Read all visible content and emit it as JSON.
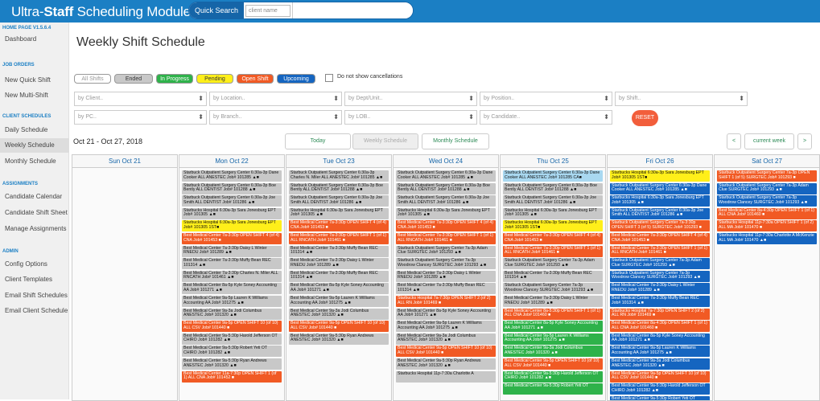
{
  "header": {
    "title_prefix": "Ultra-",
    "title_bold": "Staff",
    "title_suffix": " Scheduling Module",
    "quick_search_label": "Quick Search",
    "quick_search_select": "client name"
  },
  "sidebar": {
    "version": "HOME PAGE  V1.5.6.4",
    "sections": [
      {
        "heading": "",
        "items": [
          "Dashboard"
        ]
      },
      {
        "heading": "JOB ORDERS",
        "items": [
          "New Quick Shift",
          "New Multi-Shift"
        ]
      },
      {
        "heading": "CLIENT SCHEDULES",
        "items": [
          "Daily Schedule",
          "Weekly Schedule",
          "Monthly Schedule"
        ]
      },
      {
        "heading": "ASSIGNMENTS",
        "items": [
          "Candidate Calendar",
          "Candidate Shift Sheet",
          "Manage Assignments"
        ]
      },
      {
        "heading": "ADMIN",
        "items": [
          "Config Options",
          "Client Templates",
          "Email Shift Schedules",
          "Email Client Schedule"
        ]
      }
    ],
    "active": "Weekly Schedule"
  },
  "main": {
    "page_title": "Weekly Shift Schedule",
    "status_buttons": [
      {
        "label": "All Shifts",
        "color": "#ffffff"
      },
      {
        "label": "Ended",
        "color": "#c8c8c8"
      },
      {
        "label": "In Progress",
        "color": "#2eb24a"
      },
      {
        "label": "Pending",
        "color": "#ffef1a"
      },
      {
        "label": "Open Shift",
        "color": "#f15a24"
      },
      {
        "label": "Upcoming",
        "color": "#1565c0"
      }
    ],
    "cancel_label": "Do not show cancellations",
    "filters": [
      "by Client..",
      "by Location..",
      "by Dept/Unit..",
      "by Position..",
      "by Shift..",
      "by PC..",
      "by Branch..",
      "by LOB..",
      "by Candidate.."
    ],
    "reset_label": "RESET",
    "date_range": "Oct 21 - Oct 27, 2018",
    "views": [
      "Today",
      "Weekly Schedule",
      "Monthly Schedule"
    ],
    "nav": {
      "prev": "<",
      "current": "current week",
      "next": ">"
    },
    "days": [
      {
        "name": "Sun Oct 21",
        "events": []
      },
      {
        "name": "Mon Oct 22",
        "events": [
          {
            "c": "gray",
            "t": "Starbuck Outpatient Surgery Center 6:30a-3p Dane Cooker ALL ANESTEC Job# 101285 ▲■"
          },
          {
            "c": "gray",
            "t": "Starbuck Outpatient Surgery Center 6:30a-3p Boe Bently ALL DENTIST Job# 101288 ▲■"
          },
          {
            "c": "gray",
            "t": "Starbuck Outpatient Surgery Center 6:30a-3p Joe Smith ALL DENTIST Job# 101286 ▲■"
          },
          {
            "c": "gray",
            "t": "Starbucks Hospital 6:30a-3p Sara Jonesburg EPT Job# 101305 ▲■"
          },
          {
            "c": "yellow",
            "t": "Starbucks Hospital 6:30a-3p Sara Jonesburg EPT Job# 101305 1ST■"
          },
          {
            "c": "orange",
            "t": "Best Medical Center 7a-3:30p OPEN SHIFT 4 (of 4) CNA Job# 101453 ■"
          },
          {
            "c": "gray",
            "t": "Best Medical Center 7a-3:30p Daisy L Winter RNEDU Job# 101289 ▲■"
          },
          {
            "c": "gray",
            "t": "Best Medical Center 7a-3:30p Muffy Bean REC 101314 ▲■"
          },
          {
            "c": "gray",
            "t": "Best Medical Center 7a-3:30p Charles N. Miler ALL RNCATH Job# 101461 ▲■"
          },
          {
            "c": "gray",
            "t": "Best Medical Center 8a-5p Kyle Soney Accounting AA Job# 101271 ▲■"
          },
          {
            "c": "gray",
            "t": "Best Medical Center 9a-5p Lauren K Williams Accounting AA Job# 101275 ▲■"
          },
          {
            "c": "gray",
            "t": "Best Medical Center 9a-3a Jodi Columbus ANESTEC Job# 101320 ▲■"
          },
          {
            "c": "orange",
            "t": "Best Medical Center 9a-5p OPEN SHIFT 10 (of 10) ALL CSV Job# 101440 ■"
          },
          {
            "c": "gray",
            "t": "Best Medical Center 9a-5:30p Harold Jefferson OT CHIRO Job# 101282 ▲■"
          },
          {
            "c": "gray",
            "t": "Best Medical Center 9a-5:30p Robert Yeti OT CHIRO Job# 101282 ▲■"
          },
          {
            "c": "gray",
            "t": "Best Medical Center 9a-5:30p Ryan Andrews ANESTEC Job# 101320 ▲■"
          },
          {
            "c": "orange",
            "t": "Best Medical Center 11a-7:30p OPEN SHIFT 1 (of 1) ALL CNA Job# 101452 ■"
          }
        ]
      },
      {
        "name": "Tue Oct 23",
        "events": [
          {
            "c": "gray",
            "t": "Starbuck Outpatient Surgery Center 6:30a-3p Charles N. Miler ALL ANESTEC Job# 101285 ▲■"
          },
          {
            "c": "gray",
            "t": "Starbuck Outpatient Surgery Center 6:30a-3p Boe Bently ALL DENTIST Job# 101288 ▲■"
          },
          {
            "c": "gray",
            "t": "Starbuck Outpatient Surgery Center 6:30a-3p Joe Smith ALL DENTIST Job# 101286 ▲■"
          },
          {
            "c": "gray",
            "t": "Starbucks Hospital 6:30a-3p Sara Jonesburg EPT Job# 101305 ▲■"
          },
          {
            "c": "orange",
            "t": "Best Medical Center 7a-3:30p OPEN SHIFT 4 (of 4) CNA Job# 101453 ■"
          },
          {
            "c": "orange",
            "t": "Best Medical Center 7a-3:30p OPEN SHIFT 1 (of 1) ALL RNCATH Job# 101461 ■"
          },
          {
            "c": "gray",
            "t": "Best Medical Center 7a-3:30p Muffy Bean REC 101314 ▲■"
          },
          {
            "c": "gray",
            "t": "Best Medical Center 7a-3:30p Daisy L Winter RNEDU Job# 101289 ▲■"
          },
          {
            "c": "gray",
            "t": "Best Medical Center 7a-3:30p Muffy Bean REC 101314 ▲■"
          },
          {
            "c": "gray",
            "t": "Best Medical Center 8a-5p Kyle Soney Accounting AA Job# 101271 ▲■"
          },
          {
            "c": "gray",
            "t": "Best Medical Center 9a-5p Lauren K Williams Accounting AA Job# 101275 ▲■"
          },
          {
            "c": "gray",
            "t": "Best Medical Center 9a-3a Jodi Columbus ANESTEC Job# 101320 ▲■"
          },
          {
            "c": "orange",
            "t": "Best Medical Center 9a-5p OPEN SHIFT 10 (of 10) ALL CSV Job# 101440 ■"
          },
          {
            "c": "gray",
            "t": "Best Medical Center 9a-5:30p Ryan Andrews ANESTEC Job# 101320 ▲■"
          }
        ]
      },
      {
        "name": "Wed Oct 24",
        "events": [
          {
            "c": "gray",
            "t": "Starbuck Outpatient Surgery Center 6:30a-3p Dane Cooker ALL ANESTEC Job# 101285 ▲■"
          },
          {
            "c": "gray",
            "t": "Starbuck Outpatient Surgery Center 6:30a-3p Boe Bently ALL DENTIST Job# 101288 ▲■"
          },
          {
            "c": "gray",
            "t": "Starbuck Outpatient Surgery Center 6:30a-3p Joe Smith ALL DENTIST Job# 101286 ▲■"
          },
          {
            "c": "gray",
            "t": "Starbucks Hospital 6:30a-3p Sara Jonesburg EPT Job# 101305 ▲■"
          },
          {
            "c": "orange",
            "t": "Best Medical Center 7a-3:30p OPEN SHIFT 4 (of 4) CNA Job# 101453 ■"
          },
          {
            "c": "orange",
            "t": "Best Medical Center 7a-3:30p OPEN SHIFT 1 (of 1) ALL RNCATH Job# 101461 ■"
          },
          {
            "c": "gray",
            "t": "Starbuck Outpatient Surgery Center 7a-3p Adam Clue SURGTEC Job# 101293 ▲■"
          },
          {
            "c": "gray",
            "t": "Starbuck Outpatient Surgery Center 7a-3p Woodrow Clancey SURGTEC Job# 101293 ▲■"
          },
          {
            "c": "gray",
            "t": "Best Medical Center 7a-3:30p Daisy L Winter RNEDU Job# 101289 ▲■"
          },
          {
            "c": "gray",
            "t": "Best Medical Center 7a-3:30p Muffy Bean REC 101314 ▲■"
          },
          {
            "c": "orange",
            "t": "Starbucks Hospital 7a-7:30p OPEN SHIFT 2 (of 2) ALL RN Job# 101469 ■"
          },
          {
            "c": "gray",
            "t": "Best Medical Center 8a-5p Kyle Soney Accounting AA Job# 101271 ▲■"
          },
          {
            "c": "gray",
            "t": "Best Medical Center 9a-5p Lauren K Williams Accounting AA Job# 101275 ▲■"
          },
          {
            "c": "gray",
            "t": "Best Medical Center 9a-3a Jodi Columbus ANESTEC Job# 101320 ▲■"
          },
          {
            "c": "orange",
            "t": "Best Medical Center 9a-5p OPEN SHIFT 10 (of 10) ALL CSV Job# 101440 ■"
          },
          {
            "c": "gray",
            "t": "Best Medical Center 9a-5:30p Ryan Andrews ANESTEC Job# 101320 ▲■"
          },
          {
            "c": "gray",
            "t": "Starbucks Hospital 11p-7:30a Charlotte A"
          }
        ]
      },
      {
        "name": "Thu Oct 25",
        "events": [
          {
            "c": "lblue",
            "t": "Starbuck Outpatient Surgery Center 6:30a-3p Dane Cooker ALL ANESTEC Job# 101285 CA■"
          },
          {
            "c": "gray",
            "t": "Starbuck Outpatient Surgery Center 6:30a-3p Boe Bently ALL DENTIST Job# 101288 ▲■"
          },
          {
            "c": "gray",
            "t": "Starbuck Outpatient Surgery Center 6:30a-3p Joe Smith ALL DENTIST Job# 101286 ▲■"
          },
          {
            "c": "gray",
            "t": "Starbucks Hospital 6:30a-3p Sara Jonesburg EPT Job# 101305 ▲■"
          },
          {
            "c": "yellow",
            "t": "Starbucks Hospital 6:30a-3p Sara Jonesburg EPT Job# 101305 1ST■"
          },
          {
            "c": "orange",
            "t": "Best Medical Center 7a-3:30p OPEN SHIFT 4 (of 4) CNA Job# 101453 ■"
          },
          {
            "c": "orange",
            "t": "Best Medical Center 7a-3:30p OPEN SHIFT 1 (of 1) ALL RNCATH Job# 101461 ■"
          },
          {
            "c": "gray",
            "t": "Starbuck Outpatient Surgery Center 7a-3p Adam Clue SURGTEC Job# 101293 ▲■"
          },
          {
            "c": "gray",
            "t": "Best Medical Center 7a-3:30p Muffy Bean REC 101314 ▲■"
          },
          {
            "c": "gray",
            "t": "Starbuck Outpatient Surgery Center 7a-3p Woodrow Clancey SURGTEC Job# 101293 ▲■"
          },
          {
            "c": "gray",
            "t": "Best Medical Center 7a-3:30p Daisy L Winter RNEDU Job# 101289 ▲■"
          },
          {
            "c": "orange",
            "t": "Best Medical Center 8a-5:30p OPEN SHIFT 1 (of 1) ALL CNA Job# 101460 ■"
          },
          {
            "c": "green",
            "t": "Best Medical Center 8a-5p Kyle Soney Accounting AA Job# 101271 ▲■"
          },
          {
            "c": "green",
            "t": "Best Medical Center 9a-5p Lauren K Williams Accounting AA Job# 101275 ▲■"
          },
          {
            "c": "green",
            "t": "Best Medical Center 9a-3a Jodi Columbus ANESTEC Job# 101320 ▲■"
          },
          {
            "c": "orange",
            "t": "Best Medical Center 9a-5p OPEN SHIFT 10 (of 10) ALL CSV Job# 101440 ■"
          },
          {
            "c": "green",
            "t": "Best Medical Center 9a-5:30p Harold Jefferson OT CHIRO Job# 101282 ▲■"
          },
          {
            "c": "green",
            "t": "Best Medical Center 9a-5:30p Robert Yeti OT"
          }
        ]
      },
      {
        "name": "Fri Oct 26",
        "events": [
          {
            "c": "yellow",
            "t": "Starbucks Hospital 6:30a-3p Sara Jonesburg EPT Job# 101305 1ST■"
          },
          {
            "c": "blue",
            "t": "Starbuck Outpatient Surgery Center 6:30a-3p Dane Cooker ALL ANESTEC Job# 101285 ▲■"
          },
          {
            "c": "blue",
            "t": "Starbucks Hospital 6:30a-3p Sara Jonesburg EPT Job# 101305 ▲■"
          },
          {
            "c": "blue",
            "t": "Starbuck Outpatient Surgery Center 6:30a-3p Joe Smith ALL DENTIST Job# 101286 ▲■"
          },
          {
            "c": "orange",
            "t": "Starbuck Outpatient Surgery Center 7a-3:30p OPEN SHIFT 3 (of 5) SURGTEC Job# 101293 ■"
          },
          {
            "c": "orange",
            "t": "Best Medical Center 7a-3:30p OPEN SHIFT 4 (of 4) CNA Job# 101453 ■"
          },
          {
            "c": "orange",
            "t": "Best Medical Center 7a-3:30p OPEN SHIFT 1 (of 1) ALL RNCATH Job# 101461 ■"
          },
          {
            "c": "blue",
            "t": "Starbuck Outpatient Surgery Center 7a-3p Adam Clue SURGTEC Job# 101293 ▲■"
          },
          {
            "c": "blue",
            "t": "Starbuck Outpatient Surgery Center 7a-3p Woodrow Clancey SURGTEC Job# 101293 ▲■"
          },
          {
            "c": "blue",
            "t": "Best Medical Center 7a-3:30p Daisy L Winter RNEDU Job# 101289 ▲■"
          },
          {
            "c": "blue",
            "t": "Best Medical Center 7a-3:30p Muffy Bean REC Job# 101314 ▲■"
          },
          {
            "c": "orange",
            "t": "Starbucks Hospital 7a-7:30p OPEN SHIFT 2 (of 2) ALL RN Job# 101469 ■"
          },
          {
            "c": "orange",
            "t": "Best Medical Center 8a-4:30p OPEN SHIFT 1 (of 1) ALL CNA Job# 101460 ■"
          },
          {
            "c": "blue",
            "t": "Best Medical Center 8a-5p Kyle Soney Accounting AA Job# 101271 ▲■"
          },
          {
            "c": "blue",
            "t": "Best Medical Center 9a-5p Lauren K Williams Accounting AA Job# 101275 ▲■"
          },
          {
            "c": "blue",
            "t": "Best Medical Center 9a-3a Jodi Columbus ANESTEC Job# 101320 ▲■"
          },
          {
            "c": "orange",
            "t": "Best Medical Center 9a-5p OPEN SHIFT 10 (of 10) ALL CSV Job# 101440 ■"
          },
          {
            "c": "blue",
            "t": "Best Medical Center 9a-5:30p Harold Jefferson OT CHIRO Job# 101282 ▲■"
          },
          {
            "c": "blue",
            "t": "Best Medical Center 9a-5:30p Robert Yeti OT"
          }
        ]
      },
      {
        "name": "Sat Oct 27",
        "events": [
          {
            "c": "orange",
            "t": "Starbuck Outpatient Surgery Center 7a-3p OPEN SHIFT 1 (of 5) SURGTEC Job# 101293 ■"
          },
          {
            "c": "blue",
            "t": "Starbuck Outpatient Surgery Center 7a-3p Adam Clue SURGTEC Job# 101293 ▲■"
          },
          {
            "c": "blue",
            "t": "Starbuck Outpatient Surgery Center 7a-3p Woodrow Clancey SURGTEC Job# 101293 ▲■"
          },
          {
            "c": "orange",
            "t": "Best Medical Center 8a-4:30p OPEN SHIFT 1 (of 1) ALL CNA Job# 101460 ■"
          },
          {
            "c": "orange",
            "t": "Starbucks Hospital 11p-7:30a OPEN SHIFT 1 (of 2) ALL MA Job# 101470 ■"
          },
          {
            "c": "blue",
            "t": "Starbucks Hospital 11p-7:30a Charlotte A McKenzie ALL MA Job# 101470 ▲■"
          }
        ]
      }
    ]
  }
}
